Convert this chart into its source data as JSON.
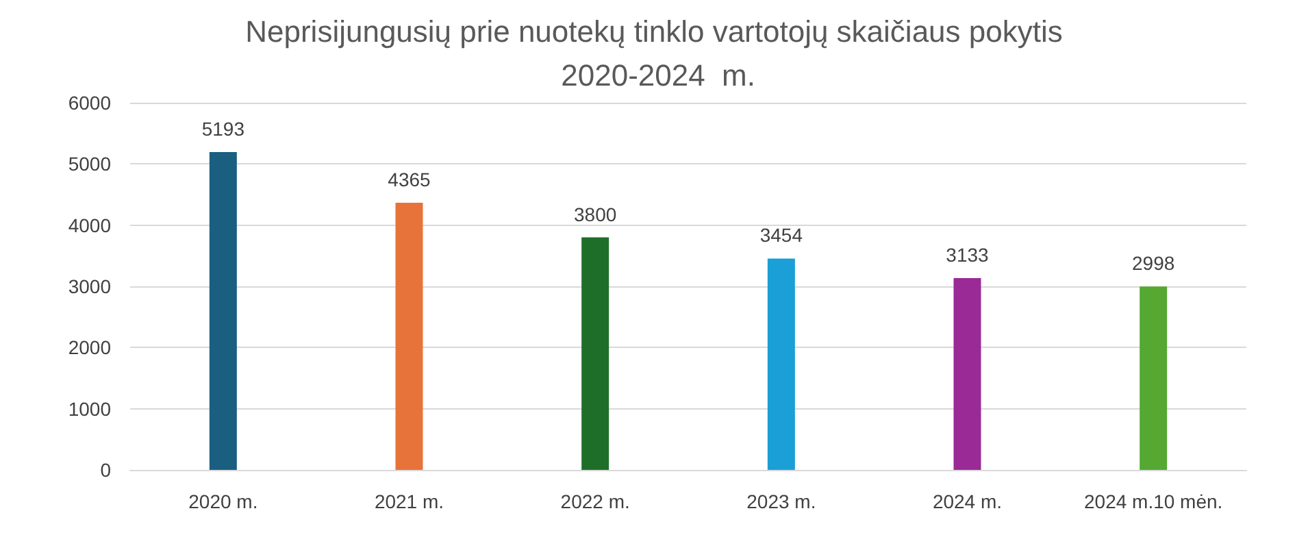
{
  "chart_data": {
    "type": "bar",
    "title": "Neprisijungusių prie nuotekų tinklo vartotojų skaičiaus pokytis 2020-2024  m.",
    "categories": [
      "2020 m.",
      "2021 m.",
      "2022 m.",
      "2023 m.",
      "2024 m.",
      "2024 m.10 mėn."
    ],
    "values": [
      5193,
      4365,
      3800,
      3454,
      3133,
      2998
    ],
    "colors": [
      "#1a5e80",
      "#e8733a",
      "#1e6e2a",
      "#1a9fd6",
      "#9a2a96",
      "#55a832"
    ],
    "ylim": [
      0,
      6000
    ],
    "yticks": [
      0,
      1000,
      2000,
      3000,
      4000,
      5000,
      6000
    ],
    "grid": "y",
    "data_labels": true
  }
}
